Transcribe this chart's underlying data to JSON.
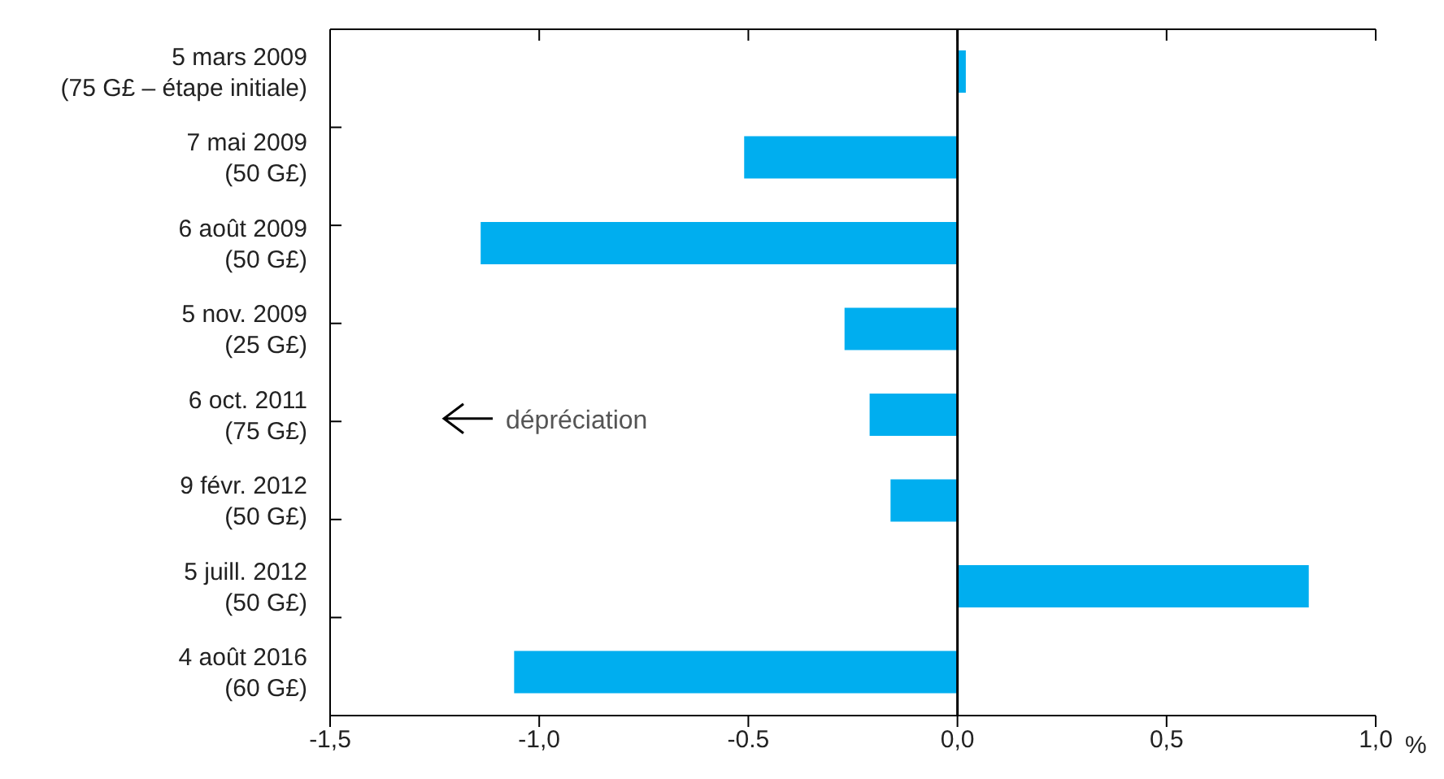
{
  "chart_data": {
    "type": "bar",
    "orientation": "horizontal",
    "categories": [
      "5 mars 2009\n(75 G£ – étape initiale)",
      "7 mai 2009\n(50 G£)",
      "6 août 2009\n(50 G£)",
      "5 nov. 2009\n(25 G£)",
      "6 oct. 2011\n(75 G£)",
      "9 févr. 2012\n(50 G£)",
      "5 juill. 2012\n(50 G£)",
      "4 août 2016\n(60 G£)"
    ],
    "values": [
      0.02,
      -0.51,
      -1.14,
      -0.27,
      -0.21,
      -0.16,
      0.84,
      -1.06
    ],
    "color": "#00aeef",
    "xlim": [
      -1.5,
      1.0
    ],
    "xticks": [
      {
        "value": -1.5,
        "label": "-1,5"
      },
      {
        "value": -1.0,
        "label": "-1,0"
      },
      {
        "value": -0.5,
        "label": "-0.5"
      },
      {
        "value": 0,
        "label": "0,0"
      },
      {
        "value": 0.5,
        "label": "0,5"
      },
      {
        "value": 1.0,
        "label": "1,0"
      }
    ],
    "xlabel": "%",
    "ref_lines": [
      {
        "axis": "x",
        "value": 0,
        "color": "#000000"
      }
    ],
    "annotations": [
      "dépréciation"
    ]
  }
}
